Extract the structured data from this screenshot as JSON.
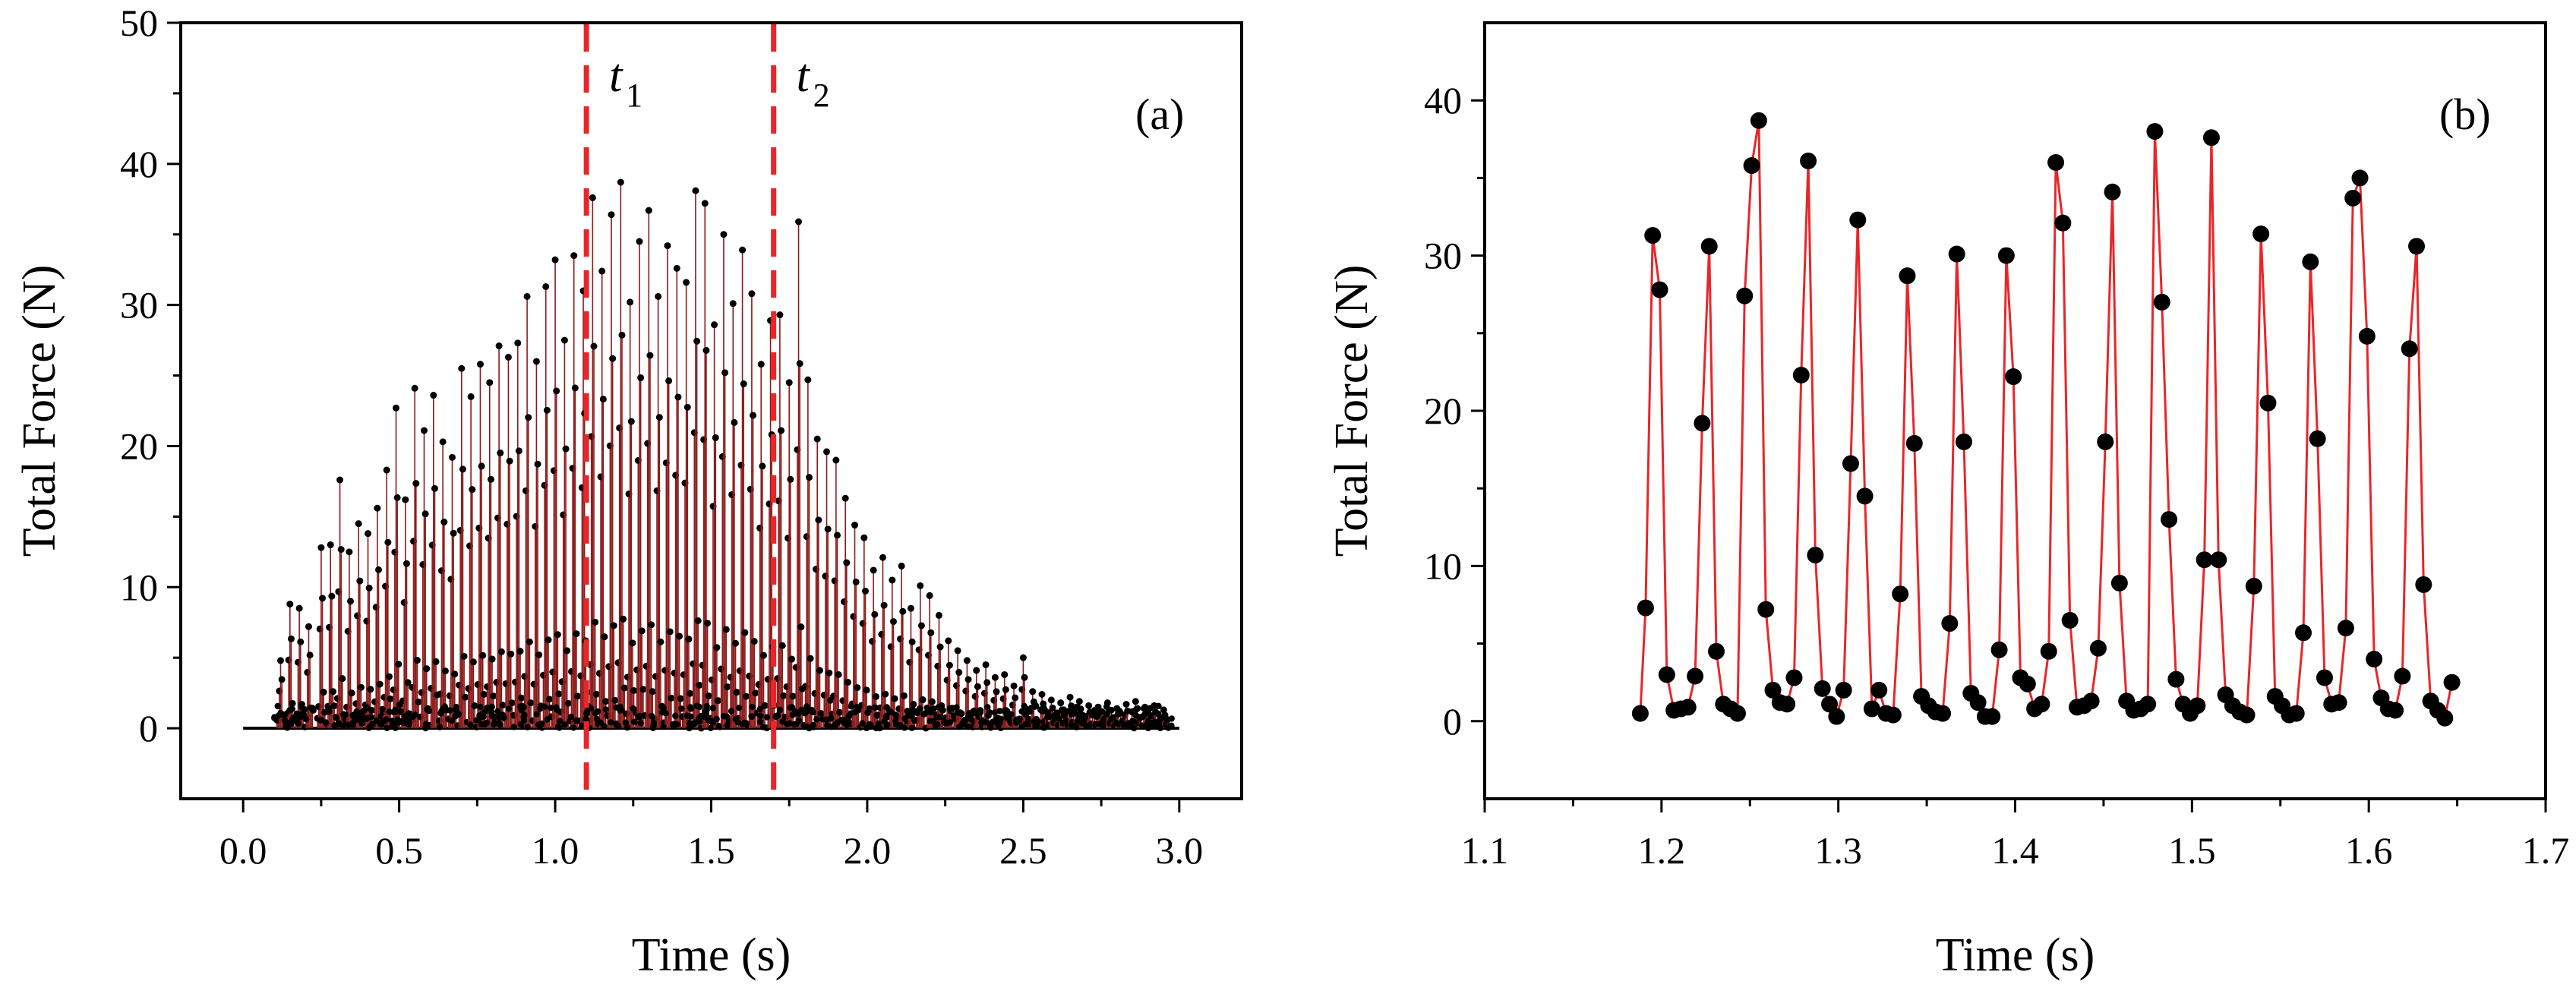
{
  "colors": {
    "line": "#e8262a",
    "stem": "#8b1a1a",
    "marker": "#000000",
    "vline": "#e8262a",
    "axis": "#000000"
  },
  "chart_data": [
    {
      "id": "a",
      "type": "scatter",
      "panel_label": "(a)",
      "xlabel": "Time (s)",
      "ylabel": "Total Force (N)",
      "xlim": [
        -0.2,
        3.2
      ],
      "ylim": [
        -5,
        50
      ],
      "xticks": [
        0.0,
        0.5,
        1.0,
        1.5,
        2.0,
        2.5,
        3.0
      ],
      "xtick_labels": [
        "0.0",
        "0.5",
        "1.0",
        "1.5",
        "2.0",
        "2.5",
        "3.0"
      ],
      "yticks": [
        0,
        10,
        20,
        30,
        40,
        50
      ],
      "ytick_labels": [
        "0",
        "10",
        "20",
        "30",
        "40",
        "50"
      ],
      "style": "stem",
      "vlines": [
        {
          "x": 1.1,
          "label": "t",
          "sub": "1"
        },
        {
          "x": 1.7,
          "label": "t",
          "sub": "2"
        }
      ],
      "peak_times": [
        0.12,
        0.15,
        0.18,
        0.21,
        0.25,
        0.28,
        0.31,
        0.34,
        0.37,
        0.4,
        0.43,
        0.46,
        0.49,
        0.52,
        0.55,
        0.58,
        0.61,
        0.64,
        0.67,
        0.7,
        0.73,
        0.76,
        0.79,
        0.82,
        0.85,
        0.88,
        0.91,
        0.94,
        0.97,
        1.0,
        1.03,
        1.06,
        1.09,
        1.12,
        1.15,
        1.18,
        1.21,
        1.24,
        1.27,
        1.3,
        1.33,
        1.36,
        1.39,
        1.42,
        1.45,
        1.48,
        1.51,
        1.54,
        1.57,
        1.6,
        1.63,
        1.66,
        1.69,
        1.72,
        1.75,
        1.78,
        1.81,
        1.84,
        1.87,
        1.9,
        1.93,
        1.96,
        1.99,
        2.02,
        2.05,
        2.08,
        2.11,
        2.14,
        2.17,
        2.2,
        2.23,
        2.26,
        2.29,
        2.32,
        2.35,
        2.38,
        2.41,
        2.44,
        2.47,
        2.5,
        2.53,
        2.56,
        2.59,
        2.62,
        2.65,
        2.68,
        2.71,
        2.74,
        2.77,
        2.8,
        2.83,
        2.86,
        2.89,
        2.92,
        2.95
      ],
      "peak_values": [
        4.8,
        8.8,
        8.5,
        7.2,
        12.8,
        13.0,
        17.6,
        12.5,
        14.5,
        13.8,
        15.6,
        18.3,
        22.7,
        16.2,
        24.1,
        21.1,
        23.6,
        20.3,
        19.2,
        25.5,
        23.5,
        25.8,
        24.5,
        27.1,
        26.3,
        27.3,
        30.6,
        26.0,
        31.3,
        33.2,
        27.5,
        33.5,
        31.0,
        37.6,
        32.4,
        36.4,
        38.7,
        30.2,
        34.5,
        36.7,
        30.6,
        34.2,
        32.6,
        31.6,
        38.1,
        37.2,
        28.6,
        35.0,
        30.1,
        33.9,
        30.8,
        25.8,
        28.9,
        29.3,
        24.5,
        35.9,
        24.7,
        20.5,
        19.6,
        19.0,
        16.3,
        14.4,
        13.5,
        11.2,
        12.1,
        10.5,
        11.5,
        8.5,
        10.1,
        9.4,
        8.0,
        6.2,
        5.5,
        4.8,
        4.1,
        4.5,
        3.6,
        3.8,
        3.0,
        5.0,
        2.6,
        2.4,
        2.0,
        1.8,
        2.2,
        1.9,
        1.6,
        1.5,
        1.8,
        1.4,
        1.7,
        1.9,
        1.5,
        1.6,
        1.3
      ]
    },
    {
      "id": "b",
      "type": "line",
      "panel_label": "(b)",
      "xlabel": "Time (s)",
      "ylabel": "Total Force (N)",
      "xlim": [
        1.1,
        1.7
      ],
      "ylim": [
        -5,
        45
      ],
      "xticks": [
        1.1,
        1.2,
        1.3,
        1.4,
        1.5,
        1.6,
        1.7
      ],
      "xtick_labels": [
        "1.1",
        "1.2",
        "1.3",
        "1.4",
        "1.5",
        "1.6",
        "1.7"
      ],
      "yticks": [
        0,
        10,
        20,
        30,
        40
      ],
      "ytick_labels": [
        "0",
        "10",
        "20",
        "30",
        "40"
      ],
      "x": [
        1.188,
        1.191,
        1.195,
        1.199,
        1.203,
        1.207,
        1.211,
        1.215,
        1.219,
        1.223,
        1.227,
        1.231,
        1.235,
        1.239,
        1.243,
        1.247,
        1.251,
        1.255,
        1.259,
        1.263,
        1.267,
        1.271,
        1.275,
        1.279,
        1.283,
        1.287,
        1.291,
        1.295,
        1.299,
        1.303,
        1.307,
        1.311,
        1.315,
        1.319,
        1.323,
        1.327,
        1.331,
        1.335,
        1.339,
        1.343,
        1.347,
        1.351,
        1.355,
        1.359,
        1.363,
        1.367,
        1.371,
        1.375,
        1.379,
        1.383,
        1.387,
        1.391,
        1.395,
        1.399,
        1.403,
        1.407,
        1.411,
        1.415,
        1.419,
        1.423,
        1.427,
        1.431,
        1.435,
        1.439,
        1.443,
        1.447,
        1.451,
        1.455,
        1.459,
        1.463,
        1.467,
        1.471,
        1.475,
        1.479,
        1.483,
        1.487,
        1.491,
        1.495,
        1.499,
        1.503,
        1.507,
        1.511,
        1.515,
        1.519,
        1.523,
        1.527,
        1.531,
        1.535,
        1.539,
        1.543,
        1.547,
        1.551,
        1.555,
        1.559,
        1.563,
        1.567,
        1.571,
        1.575,
        1.579,
        1.583,
        1.587,
        1.591,
        1.595,
        1.599,
        1.603,
        1.607,
        1.611,
        1.615,
        1.619,
        1.623,
        1.627,
        1.631,
        1.635,
        1.639,
        1.643,
        1.647
      ],
      "y": [
        0.5,
        7.3,
        31.3,
        27.8,
        3.0,
        0.7,
        0.8,
        0.9,
        2.9,
        19.2,
        30.6,
        4.5,
        1.1,
        0.8,
        0.5,
        27.4,
        35.8,
        38.7,
        7.2,
        2.0,
        1.2,
        1.1,
        2.8,
        22.3,
        36.1,
        10.7,
        2.1,
        1.1,
        0.3,
        2.0,
        16.6,
        32.3,
        14.5,
        0.8,
        2.0,
        0.5,
        0.4,
        8.2,
        28.7,
        17.9,
        1.6,
        1.0,
        0.6,
        0.5,
        6.3,
        30.1,
        18.0,
        1.8,
        1.2,
        0.3,
        0.3,
        4.6,
        30.0,
        22.2,
        2.8,
        2.4,
        0.8,
        1.1,
        4.5,
        36.0,
        32.1,
        6.5,
        0.9,
        1.0,
        1.3,
        4.7,
        18.0,
        34.1,
        8.9,
        1.3,
        0.7,
        0.8,
        1.1,
        38.0,
        27.0,
        13.0,
        2.7,
        1.1,
        0.5,
        1.0,
        10.4,
        37.6,
        10.4,
        1.7,
        1.0,
        0.6,
        0.4,
        8.7,
        31.4,
        20.5,
        1.6,
        1.0,
        0.4,
        0.5,
        5.7,
        29.6,
        18.2,
        2.8,
        1.1,
        1.2,
        6.0,
        33.7,
        35.0,
        24.8,
        4.0,
        1.5,
        0.8,
        0.7,
        2.9,
        24.0,
        30.6,
        8.8,
        1.3,
        0.7,
        0.2,
        2.5
      ]
    }
  ]
}
